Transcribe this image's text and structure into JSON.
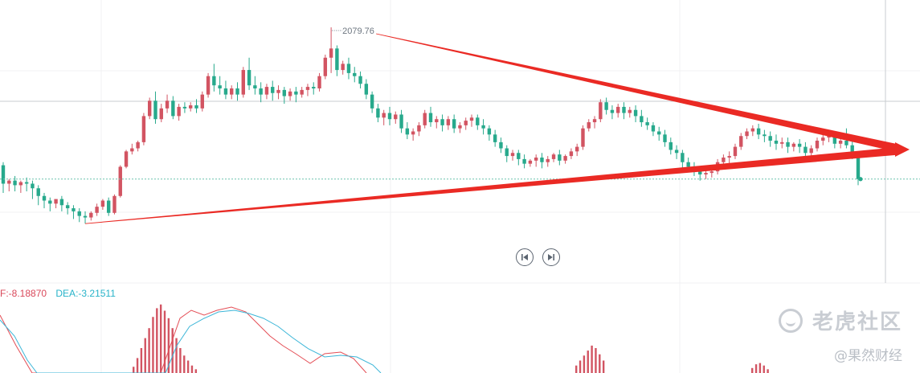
{
  "chart_data": {
    "type": "candlestick",
    "peak_label": "2079.76",
    "price_candles": [
      [
        1990,
        1992,
        1978,
        1972
      ],
      [
        1978,
        1981,
        1980,
        1973
      ],
      [
        1980,
        1983,
        1977,
        1973
      ],
      [
        1977,
        1980,
        1979,
        1972
      ],
      [
        1979,
        1982,
        1978,
        1973
      ],
      [
        1978,
        1980,
        1975,
        1968
      ],
      [
        1975,
        1977,
        1970,
        1964
      ],
      [
        1970,
        1972,
        1967,
        1962
      ],
      [
        1967,
        1969,
        1965,
        1960
      ],
      [
        1965,
        1967,
        1968,
        1962
      ],
      [
        1968,
        1970,
        1964,
        1960
      ],
      [
        1964,
        1966,
        1962,
        1958
      ],
      [
        1962,
        1964,
        1960,
        1955
      ],
      [
        1960,
        1962,
        1957,
        1953
      ],
      [
        1957,
        1960,
        1956,
        1952
      ],
      [
        1956,
        1960,
        1959,
        1954
      ],
      [
        1959,
        1965,
        1963,
        1957
      ],
      [
        1963,
        1968,
        1967,
        1961
      ],
      [
        1967,
        1969,
        1959,
        1957
      ],
      [
        1959,
        1971,
        1970,
        1958
      ],
      [
        1970,
        1990,
        1989,
        1969
      ],
      [
        1989,
        2000,
        1999,
        1988
      ],
      [
        1999,
        2004,
        2001,
        1997
      ],
      [
        2001,
        2006,
        2005,
        1999
      ],
      [
        2005,
        2024,
        2022,
        2003
      ],
      [
        2022,
        2034,
        2032,
        2020
      ],
      [
        2032,
        2038,
        2020,
        2017
      ],
      [
        2020,
        2030,
        2027,
        2018
      ],
      [
        2027,
        2036,
        2032,
        2024
      ],
      [
        2032,
        2035,
        2022,
        2020
      ],
      [
        2022,
        2030,
        2028,
        2019
      ],
      [
        2028,
        2031,
        2027,
        2024
      ],
      [
        2027,
        2031,
        2029,
        2025
      ],
      [
        2029,
        2033,
        2027,
        2024
      ],
      [
        2027,
        2038,
        2036,
        2025
      ],
      [
        2036,
        2050,
        2048,
        2034
      ],
      [
        2048,
        2056,
        2042,
        2038
      ],
      [
        2042,
        2048,
        2040,
        2036
      ],
      [
        2040,
        2045,
        2036,
        2033
      ],
      [
        2036,
        2042,
        2040,
        2033
      ],
      [
        2040,
        2044,
        2036,
        2032
      ],
      [
        2036,
        2054,
        2052,
        2034
      ],
      [
        2052,
        2060,
        2042,
        2039
      ],
      [
        2042,
        2048,
        2040,
        2036
      ],
      [
        2040,
        2044,
        2036,
        2031
      ],
      [
        2036,
        2043,
        2041,
        2033
      ],
      [
        2041,
        2045,
        2037,
        2032
      ],
      [
        2037,
        2042,
        2039,
        2033
      ],
      [
        2039,
        2041,
        2035,
        2030
      ],
      [
        2035,
        2040,
        2038,
        2032
      ],
      [
        2038,
        2041,
        2036,
        2031
      ],
      [
        2036,
        2041,
        2039,
        2034
      ],
      [
        2039,
        2043,
        2041,
        2035
      ],
      [
        2041,
        2044,
        2040,
        2036
      ],
      [
        2040,
        2050,
        2048,
        2038
      ],
      [
        2048,
        2062,
        2060,
        2046
      ],
      [
        2060,
        2079.76,
        2066,
        2050
      ],
      [
        2066,
        2068,
        2052,
        2048
      ],
      [
        2052,
        2058,
        2056,
        2049
      ],
      [
        2056,
        2060,
        2050,
        2046
      ],
      [
        2050,
        2054,
        2048,
        2044
      ],
      [
        2048,
        2051,
        2043,
        2040
      ],
      [
        2043,
        2046,
        2036,
        2033
      ],
      [
        2036,
        2038,
        2027,
        2024
      ],
      [
        2027,
        2030,
        2021,
        2018
      ],
      [
        2021,
        2026,
        2024,
        2016
      ],
      [
        2024,
        2028,
        2020,
        2016
      ],
      [
        2020,
        2025,
        2023,
        2017
      ],
      [
        2023,
        2026,
        2014,
        2011
      ],
      [
        2014,
        2018,
        2010,
        2007
      ],
      [
        2010,
        2014,
        2012,
        2006
      ],
      [
        2012,
        2018,
        2016,
        2009
      ],
      [
        2016,
        2026,
        2024,
        2014
      ],
      [
        2024,
        2028,
        2018,
        2015
      ],
      [
        2018,
        2022,
        2020,
        2014
      ],
      [
        2020,
        2023,
        2016,
        2012
      ],
      [
        2016,
        2022,
        2020,
        2013
      ],
      [
        2020,
        2023,
        2014,
        2011
      ],
      [
        2014,
        2018,
        2016,
        2011
      ],
      [
        2016,
        2021,
        2019,
        2013
      ],
      [
        2019,
        2023,
        2021,
        2015
      ],
      [
        2021,
        2023,
        2016,
        2013
      ],
      [
        2016,
        2020,
        2014,
        2010
      ],
      [
        2014,
        2016,
        2010,
        2006
      ],
      [
        2010,
        2013,
        2005,
        2002
      ],
      [
        2005,
        2008,
        2001,
        1998
      ],
      [
        2001,
        2003,
        1996,
        1992
      ],
      [
        1996,
        2000,
        1998,
        1993
      ],
      [
        1998,
        2000,
        1994,
        1990
      ],
      [
        1994,
        1997,
        1991,
        1988
      ],
      [
        1991,
        1994,
        1993,
        1989
      ],
      [
        1993,
        1997,
        1995,
        1989
      ],
      [
        1995,
        1998,
        1992,
        1988
      ],
      [
        1992,
        1996,
        1994,
        1989
      ],
      [
        1994,
        1998,
        1997,
        1992
      ],
      [
        1997,
        2000,
        1993,
        1990
      ],
      [
        1993,
        1997,
        1996,
        1991
      ],
      [
        1996,
        2001,
        1999,
        1994
      ],
      [
        1999,
        2004,
        2002,
        1996
      ],
      [
        2002,
        2016,
        2014,
        2000
      ],
      [
        2014,
        2020,
        2018,
        2012
      ],
      [
        2018,
        2022,
        2020,
        2014
      ],
      [
        2020,
        2033,
        2031,
        2018
      ],
      [
        2031,
        2034,
        2026,
        2023
      ],
      [
        2026,
        2029,
        2024,
        2020
      ],
      [
        2024,
        2030,
        2028,
        2021
      ],
      [
        2028,
        2031,
        2024,
        2020
      ],
      [
        2024,
        2028,
        2026,
        2021
      ],
      [
        2026,
        2029,
        2022,
        2018
      ],
      [
        2022,
        2026,
        2018,
        2015
      ],
      [
        2018,
        2021,
        2016,
        2013
      ],
      [
        2016,
        2018,
        2012,
        2009
      ],
      [
        2012,
        2015,
        2010,
        2006
      ],
      [
        2010,
        2013,
        2005,
        2002
      ],
      [
        2005,
        2008,
        2000,
        1997
      ],
      [
        2000,
        2003,
        1998,
        1994
      ],
      [
        1998,
        2000,
        1992,
        1988
      ],
      [
        1992,
        1995,
        1989,
        1986
      ],
      [
        1989,
        1992,
        1986,
        1983
      ],
      [
        1986,
        1989,
        1984,
        1980
      ],
      [
        1984,
        1987,
        1985,
        1981
      ],
      [
        1985,
        1988,
        1986,
        1982
      ],
      [
        1986,
        1994,
        1992,
        1984
      ],
      [
        1992,
        1997,
        1995,
        1990
      ],
      [
        1995,
        1999,
        1996,
        1991
      ],
      [
        1996,
        2004,
        2002,
        1994
      ],
      [
        2002,
        2011,
        2009,
        2000
      ],
      [
        2009,
        2014,
        2012,
        2007
      ],
      [
        2012,
        2016,
        2014,
        2009
      ],
      [
        2014,
        2017,
        2010,
        2007
      ],
      [
        2010,
        2013,
        2009,
        2005
      ],
      [
        2009,
        2012,
        2006,
        2002
      ],
      [
        2006,
        2010,
        2004,
        2000
      ],
      [
        2004,
        2008,
        2005,
        2001
      ],
      [
        2005,
        2008,
        2002,
        1998
      ],
      [
        2002,
        2005,
        2004,
        1999
      ],
      [
        2004,
        2007,
        2002,
        1998
      ],
      [
        2002,
        2005,
        1998,
        1995
      ],
      [
        1998,
        2003,
        2001,
        1996
      ],
      [
        2001,
        2008,
        2006,
        1999
      ],
      [
        2006,
        2010,
        2008,
        2003
      ],
      [
        2008,
        2012,
        2010,
        2005
      ],
      [
        2010,
        2012,
        2004,
        2001
      ],
      [
        2004,
        2008,
        2006,
        2001
      ],
      [
        2006,
        2014,
        2003,
        2001
      ],
      [
        2003,
        2006,
        1998,
        1994
      ],
      [
        1998,
        1998,
        1981,
        1977
      ]
    ],
    "macd_bars_left": [
      5,
      12,
      20,
      28,
      36,
      45,
      52,
      55,
      50,
      44,
      36,
      28,
      20,
      14,
      10,
      6,
      3
    ],
    "macd_bars_mid": [
      6,
      10,
      14,
      18,
      22,
      20,
      15,
      10
    ],
    "macd_bars_right": [
      4,
      7,
      8,
      6,
      3
    ],
    "trend_lines": {
      "upper": {
        "from": "2079.76",
        "to": "arrow"
      },
      "lower": {
        "from": "low",
        "to": "arrow"
      }
    }
  },
  "macd": {
    "dif_label": "F:-8.18870",
    "dea_label": "DEA:-3.21511"
  },
  "nav": {
    "prev_icon": "skip-back-icon",
    "next_icon": "skip-forward-icon"
  },
  "watermark": {
    "brand": "老虎社区",
    "credit": "@果然财经"
  },
  "colors": {
    "up": "#d25462",
    "down": "#27a98c",
    "arrow": "#ea2a24",
    "dif": "#e44d55",
    "dea": "#3cb6d8"
  }
}
